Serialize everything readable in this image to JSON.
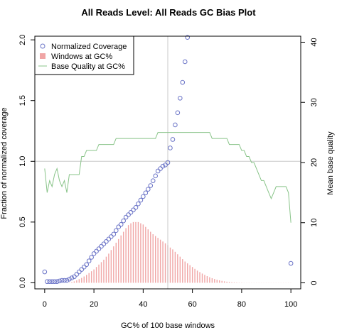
{
  "chart_data": {
    "type": "scatter",
    "title": "All Reads Level: All Reads  GC Bias Plot",
    "xlabel": "GC% of 100 base windows",
    "ylabel_left": "Fraction of normalized coverage",
    "ylabel_right": "Mean base quality",
    "xlim": [
      -4,
      104
    ],
    "ylim_left": [
      -0.05,
      2.03
    ],
    "ylim_right": [
      -1,
      41
    ],
    "xticks": [
      0,
      20,
      40,
      60,
      80,
      100
    ],
    "yticks_left": [
      "0.0",
      "0.5",
      "1.0",
      "1.5",
      "2.0"
    ],
    "yticks_right": [
      0,
      10,
      20,
      30,
      40
    ],
    "reference_lines": {
      "x": 50,
      "y": 1.0
    },
    "legend": {
      "position": "top-left",
      "entries": [
        "Normalized Coverage",
        "Windows at GC%",
        "Base Quality at GC%"
      ]
    },
    "series": [
      {
        "name": "Normalized Coverage",
        "style": "points",
        "color": "#6b74c7",
        "x": [
          0,
          1,
          2,
          3,
          4,
          5,
          6,
          7,
          8,
          9,
          10,
          11,
          12,
          13,
          14,
          15,
          16,
          17,
          18,
          19,
          20,
          21,
          22,
          23,
          24,
          25,
          26,
          27,
          28,
          29,
          30,
          31,
          32,
          33,
          34,
          35,
          36,
          37,
          38,
          39,
          40,
          41,
          42,
          43,
          44,
          45,
          46,
          47,
          48,
          49,
          50,
          51,
          52,
          53,
          54,
          55,
          56,
          57,
          58,
          100
        ],
        "y": [
          0.09,
          0.01,
          0.01,
          0.01,
          0.01,
          0.01,
          0.015,
          0.02,
          0.02,
          0.02,
          0.03,
          0.04,
          0.05,
          0.07,
          0.09,
          0.11,
          0.13,
          0.15,
          0.18,
          0.21,
          0.24,
          0.26,
          0.28,
          0.3,
          0.32,
          0.34,
          0.36,
          0.38,
          0.4,
          0.43,
          0.46,
          0.48,
          0.51,
          0.54,
          0.56,
          0.58,
          0.6,
          0.62,
          0.65,
          0.68,
          0.71,
          0.74,
          0.77,
          0.8,
          0.84,
          0.88,
          0.92,
          0.94,
          0.96,
          0.97,
          0.99,
          1.11,
          1.18,
          1.3,
          1.4,
          1.52,
          1.65,
          1.82,
          2.02,
          0.16
        ]
      },
      {
        "name": "Windows at GC%",
        "style": "bars",
        "color": "#f0a5a5",
        "axis": "left",
        "x": [
          0,
          1,
          2,
          3,
          4,
          5,
          6,
          7,
          8,
          9,
          10,
          11,
          12,
          13,
          14,
          15,
          16,
          17,
          18,
          19,
          20,
          21,
          22,
          23,
          24,
          25,
          26,
          27,
          28,
          29,
          30,
          31,
          32,
          33,
          34,
          35,
          36,
          37,
          38,
          39,
          40,
          41,
          42,
          43,
          44,
          45,
          46,
          47,
          48,
          49,
          50,
          51,
          52,
          53,
          54,
          55,
          56,
          57,
          58,
          59,
          60,
          61,
          62,
          63,
          64,
          65,
          66,
          67,
          68,
          69,
          70,
          71,
          72,
          73,
          74,
          75,
          76,
          77,
          78,
          79,
          80,
          81,
          82,
          83,
          84,
          85,
          86,
          87,
          88,
          89,
          90,
          91,
          92,
          93,
          94,
          95,
          96,
          97,
          98,
          99,
          100
        ],
        "values": [
          0,
          0,
          0,
          0,
          0,
          0,
          0,
          0,
          0,
          0,
          0.003,
          0.006,
          0.012,
          0.02,
          0.03,
          0.04,
          0.052,
          0.065,
          0.08,
          0.095,
          0.11,
          0.13,
          0.15,
          0.17,
          0.19,
          0.215,
          0.24,
          0.27,
          0.3,
          0.33,
          0.36,
          0.39,
          0.42,
          0.45,
          0.475,
          0.49,
          0.5,
          0.5,
          0.5,
          0.49,
          0.48,
          0.46,
          0.44,
          0.42,
          0.4,
          0.385,
          0.37,
          0.355,
          0.34,
          0.325,
          0.31,
          0.29,
          0.275,
          0.255,
          0.235,
          0.215,
          0.195,
          0.175,
          0.16,
          0.145,
          0.13,
          0.115,
          0.1,
          0.088,
          0.076,
          0.065,
          0.055,
          0.046,
          0.038,
          0.031,
          0.025,
          0.02,
          0.016,
          0.012,
          0.009,
          0.007,
          0.005,
          0.004,
          0.003,
          0.002,
          0.002,
          0.001,
          0.001,
          0.001,
          0.001,
          0.001,
          0.001,
          0.001,
          0.001,
          0.001,
          0.001,
          0.001,
          0.001,
          0.001,
          0.001,
          0.001,
          0.001,
          0.001,
          0.001,
          0.001,
          0.001
        ]
      },
      {
        "name": "Base Quality at GC%",
        "style": "line",
        "color": "#89c489",
        "axis": "right",
        "x": [
          0,
          1,
          2,
          3,
          4,
          5,
          6,
          7,
          8,
          9,
          10,
          11,
          12,
          13,
          14,
          15,
          16,
          17,
          18,
          19,
          20,
          21,
          22,
          23,
          24,
          25,
          26,
          27,
          28,
          29,
          30,
          31,
          32,
          33,
          34,
          35,
          36,
          37,
          38,
          39,
          40,
          41,
          42,
          43,
          44,
          45,
          46,
          47,
          48,
          49,
          50,
          51,
          52,
          53,
          54,
          55,
          56,
          57,
          58,
          59,
          60,
          61,
          62,
          63,
          64,
          65,
          66,
          67,
          68,
          69,
          70,
          71,
          72,
          73,
          74,
          75,
          76,
          77,
          78,
          79,
          80,
          81,
          82,
          83,
          84,
          85,
          86,
          87,
          88,
          89,
          90,
          91,
          92,
          93,
          94,
          95,
          96,
          97,
          98,
          99,
          100
        ],
        "values": [
          19,
          15,
          17,
          16,
          18,
          19,
          17,
          16,
          17,
          15,
          18,
          18,
          18,
          18,
          18,
          21,
          21,
          22,
          22,
          22,
          22,
          22,
          23,
          23,
          23,
          23,
          23,
          23,
          23,
          24,
          24,
          24,
          24,
          24,
          24,
          24,
          24,
          24,
          24,
          24,
          24,
          24,
          24,
          24,
          24,
          24,
          25,
          25,
          25,
          25,
          25,
          25,
          25,
          25,
          25,
          25,
          25,
          25,
          25,
          25,
          25,
          25,
          25,
          25,
          25,
          25,
          25,
          25,
          24,
          24,
          24,
          24,
          24,
          24,
          24,
          23,
          23,
          23,
          23,
          23,
          22,
          22,
          21,
          21,
          20,
          20,
          19,
          18,
          17,
          17,
          16,
          15,
          14,
          15,
          16,
          16,
          16,
          16,
          16,
          15,
          10
        ]
      }
    ]
  }
}
